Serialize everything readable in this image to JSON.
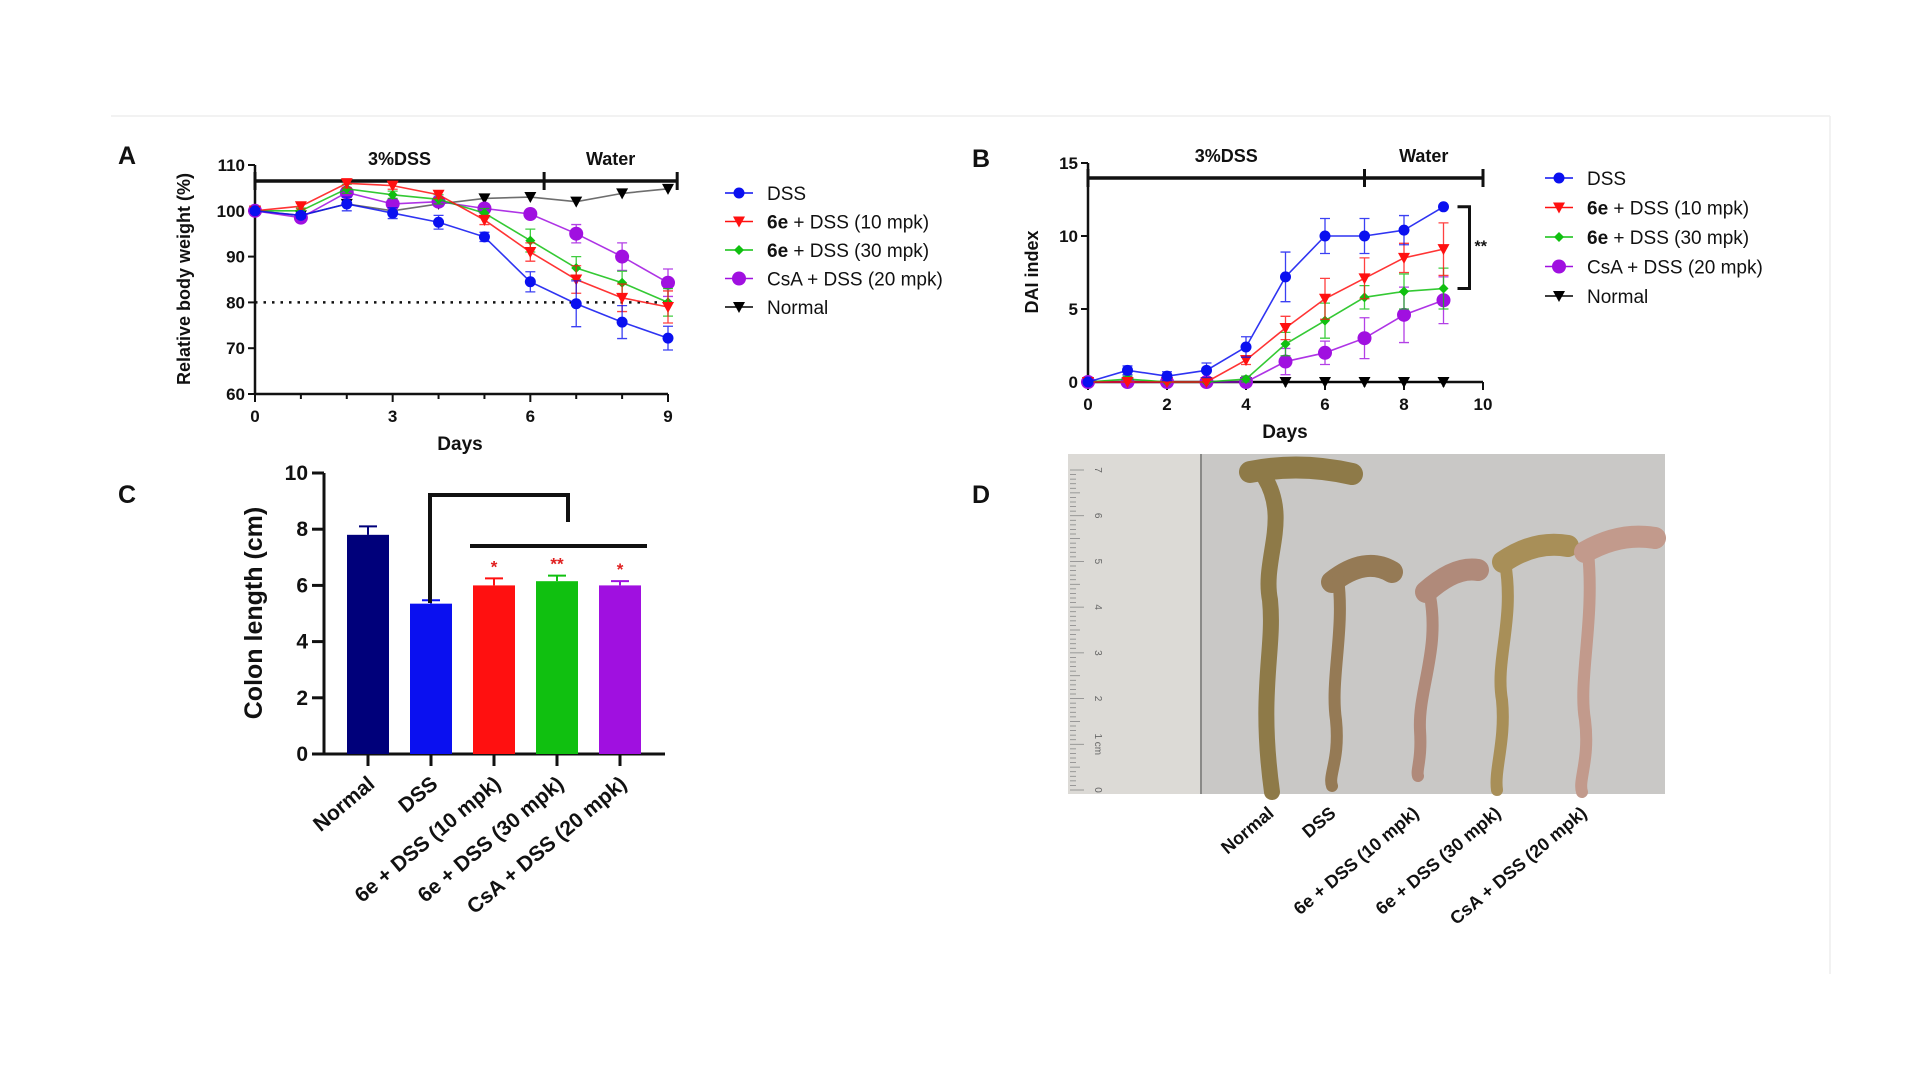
{
  "colors": {
    "DSS": "#0a10f0",
    "6e10": "#ff1010",
    "6e30": "#10c010",
    "CsA": "#a010e0",
    "Normal": "#000000",
    "NormalBar": "#00007a"
  },
  "panels": {
    "A": "A",
    "B": "B",
    "C": "C",
    "D": "D"
  },
  "chart_data": [
    {
      "type": "line",
      "panel": "A",
      "xlabel": "Days",
      "ylabel": "Relative body weight (%)",
      "xlim": [
        0,
        9
      ],
      "ylim": [
        60,
        110
      ],
      "xticks": [
        0,
        3,
        6,
        9
      ],
      "yticks": [
        60,
        70,
        80,
        90,
        100,
        110
      ],
      "reference_line": {
        "y": 80,
        "style": "dotted"
      },
      "phases": [
        {
          "label": "3%DSS",
          "from": 0,
          "to": 6.3
        },
        {
          "label": "Water",
          "from": 6.3,
          "to": 9.2
        }
      ],
      "legend_position": "right",
      "x": [
        0,
        1,
        2,
        3,
        4,
        5,
        6,
        7,
        8,
        9
      ],
      "series": [
        {
          "name": "DSS",
          "key": "DSS",
          "marker": "circle",
          "values": [
            100,
            99,
            101.5,
            99.5,
            97.5,
            94.3,
            84.5,
            79.7,
            75.7,
            72.2
          ],
          "err": [
            0.5,
            0.6,
            1.5,
            1.2,
            1.5,
            1,
            2.2,
            5,
            3.6,
            2.6
          ]
        },
        {
          "name": "6e + DSS (10 mpk)",
          "key": "6e10",
          "marker": "triangle-down",
          "values": [
            100,
            101,
            106,
            105.5,
            103.5,
            98,
            91,
            85,
            81,
            79
          ],
          "err": [
            0.5,
            0.6,
            1,
            0.8,
            0.8,
            1,
            2,
            3,
            3,
            3.5
          ]
        },
        {
          "name": "6e + DSS (30 mpk)",
          "key": "6e30",
          "marker": "diamond",
          "values": [
            100,
            100,
            104.8,
            103.5,
            102.5,
            99.5,
            93.5,
            87.5,
            84.3,
            80
          ],
          "err": [
            0.5,
            0.6,
            1,
            0.8,
            1,
            1,
            2.5,
            2.5,
            2.5,
            3
          ]
        },
        {
          "name": "CsA + DSS (20 mpk)",
          "key": "CsA",
          "marker": "circle-large",
          "values": [
            100,
            98.5,
            104,
            101.5,
            102,
            100.5,
            99.3,
            95,
            90,
            84.3
          ],
          "err": [
            0.5,
            0.6,
            1,
            1,
            1,
            1,
            0.8,
            2,
            3,
            3
          ]
        },
        {
          "name": "Normal",
          "key": "Normal",
          "marker": "triangle-down",
          "values": [
            100,
            99,
            101.5,
            100,
            101.5,
            102.7,
            103,
            102,
            103.8,
            104.8
          ],
          "err": [
            0,
            0,
            0,
            0,
            0,
            0,
            0,
            0,
            0,
            0
          ]
        }
      ]
    },
    {
      "type": "line",
      "panel": "B",
      "xlabel": "Days",
      "ylabel": "DAI index",
      "xlim": [
        0,
        10
      ],
      "ylim": [
        0,
        15
      ],
      "xticks": [
        0,
        2,
        4,
        6,
        8,
        10
      ],
      "yticks": [
        0,
        5,
        10,
        15
      ],
      "phases": [
        {
          "label": "3%DSS",
          "from": 0,
          "to": 7
        },
        {
          "label": "Water",
          "from": 7,
          "to": 10
        }
      ],
      "significance": {
        "label": "**",
        "between": [
          "DSS",
          "6e + DSS (30 mpk)"
        ],
        "at_day": 9
      },
      "legend_position": "right",
      "x": [
        0,
        1,
        2,
        3,
        4,
        5,
        6,
        7,
        8,
        9
      ],
      "series": [
        {
          "name": "DSS",
          "key": "DSS",
          "marker": "circle",
          "values": [
            0,
            0.8,
            0.4,
            0.8,
            2.4,
            7.2,
            10,
            10,
            10.4,
            12
          ],
          "err": [
            0,
            0.3,
            0.3,
            0.5,
            0.7,
            1.7,
            1.2,
            1.2,
            1,
            0
          ]
        },
        {
          "name": "6e + DSS (10 mpk)",
          "key": "6e10",
          "marker": "triangle-down",
          "values": [
            0,
            0,
            0,
            0,
            1.5,
            3.7,
            5.7,
            7.1,
            8.5,
            9.1
          ],
          "err": [
            0,
            0,
            0,
            0,
            0.3,
            0.8,
            1.4,
            1.4,
            1,
            1.8
          ]
        },
        {
          "name": "6e + DSS (30 mpk)",
          "key": "6e30",
          "marker": "diamond",
          "values": [
            0,
            0.2,
            0,
            0,
            0.2,
            2.6,
            4.2,
            5.8,
            6.2,
            6.4
          ],
          "err": [
            0,
            0.2,
            0,
            0,
            0.2,
            0.8,
            1.2,
            0.8,
            1.2,
            1.4
          ]
        },
        {
          "name": "CsA + DSS (20 mpk)",
          "key": "CsA",
          "marker": "circle-large",
          "values": [
            0,
            0,
            0,
            0,
            0,
            1.4,
            2,
            3,
            4.6,
            5.6
          ],
          "err": [
            0,
            0,
            0,
            0,
            0,
            0.9,
            0.8,
            1.4,
            1.9,
            1.6
          ]
        },
        {
          "name": "Normal",
          "key": "Normal",
          "marker": "triangle-down",
          "values": [
            0,
            0,
            0,
            0,
            0,
            0,
            0,
            0,
            0,
            0
          ],
          "err": [
            0,
            0,
            0,
            0,
            0,
            0,
            0,
            0,
            0,
            0
          ]
        }
      ]
    },
    {
      "type": "bar",
      "panel": "C",
      "ylabel": "Colon length (cm)",
      "ylim": [
        0,
        10
      ],
      "yticks": [
        0,
        2,
        4,
        6,
        8,
        10
      ],
      "categories": [
        "Normal",
        "DSS",
        "6e + DSS (10 mpk)",
        "6e + DSS (30 mpk)",
        "CsA + DSS (20 mpk)"
      ],
      "keys": [
        "NormalBar",
        "DSS",
        "6e10",
        "6e30",
        "CsA"
      ],
      "values": [
        7.8,
        5.35,
        6.0,
        6.15,
        6.0
      ],
      "err": [
        0.3,
        0.12,
        0.25,
        0.2,
        0.15
      ],
      "significance": [
        "",
        "",
        "*",
        "**",
        "*"
      ]
    }
  ],
  "photo": {
    "panel": "D",
    "ruler_labels": [
      "0",
      "1 cm",
      "2",
      "3",
      "4",
      "5",
      "6",
      "7"
    ],
    "labels": [
      "Normal",
      "DSS",
      "6e + DSS (10 mpk)",
      "6e + DSS (30 mpk)",
      "CsA + DSS (20 mpk)"
    ]
  }
}
